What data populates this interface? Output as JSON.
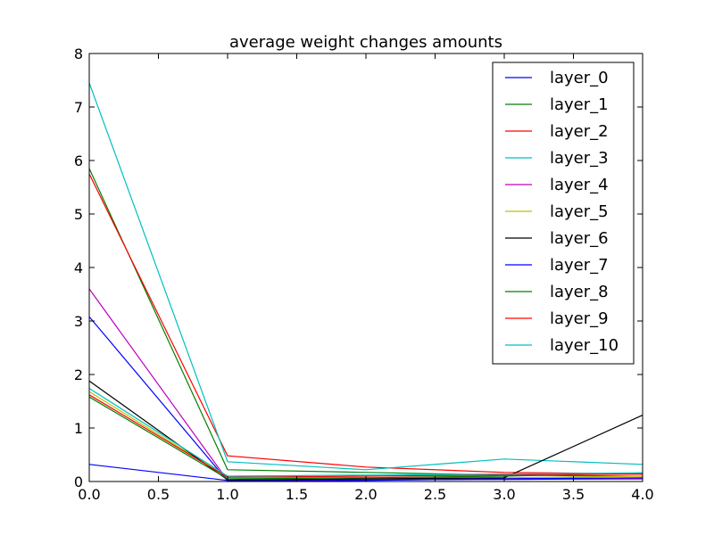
{
  "chart_data": {
    "type": "line",
    "title": "average weight changes amounts",
    "xlabel": "",
    "ylabel": "",
    "xlim": [
      0,
      4
    ],
    "ylim": [
      0,
      8
    ],
    "xticks": [
      "0.0",
      "0.5",
      "1.0",
      "1.5",
      "2.0",
      "2.5",
      "3.0",
      "3.5",
      "4.0"
    ],
    "yticks": [
      "0",
      "1",
      "2",
      "3",
      "4",
      "5",
      "6",
      "7",
      "8"
    ],
    "grid": false,
    "legend_position": "top-right",
    "x": [
      0,
      1,
      2,
      3,
      4
    ],
    "series": [
      {
        "name": "layer_0",
        "color": "#0000ff",
        "values": [
          0.32,
          0.02,
          0.03,
          0.04,
          0.05
        ]
      },
      {
        "name": "layer_1",
        "color": "#008000",
        "values": [
          5.85,
          0.22,
          0.17,
          0.12,
          0.1
        ]
      },
      {
        "name": "layer_2",
        "color": "#ff0000",
        "values": [
          5.75,
          0.48,
          0.27,
          0.17,
          0.14
        ]
      },
      {
        "name": "layer_3",
        "color": "#00bfbf",
        "values": [
          7.45,
          0.37,
          0.22,
          0.42,
          0.32
        ]
      },
      {
        "name": "layer_4",
        "color": "#bf00bf",
        "values": [
          3.6,
          0.02,
          0.04,
          0.06,
          0.06
        ]
      },
      {
        "name": "layer_5",
        "color": "#bfbf00",
        "values": [
          1.68,
          0.08,
          0.07,
          0.07,
          0.1
        ]
      },
      {
        "name": "layer_6",
        "color": "#000000",
        "values": [
          1.88,
          0.03,
          0.05,
          0.07,
          1.24
        ]
      },
      {
        "name": "layer_7",
        "color": "#0000ff",
        "values": [
          3.08,
          0.01,
          0.02,
          0.05,
          0.07
        ]
      },
      {
        "name": "layer_8",
        "color": "#008000",
        "values": [
          1.58,
          0.05,
          0.07,
          0.1,
          0.16
        ]
      },
      {
        "name": "layer_9",
        "color": "#ff0000",
        "values": [
          1.62,
          0.08,
          0.1,
          0.12,
          0.14
        ]
      },
      {
        "name": "layer_10",
        "color": "#00bfbf",
        "values": [
          1.74,
          0.1,
          0.12,
          0.14,
          0.16
        ]
      }
    ]
  }
}
